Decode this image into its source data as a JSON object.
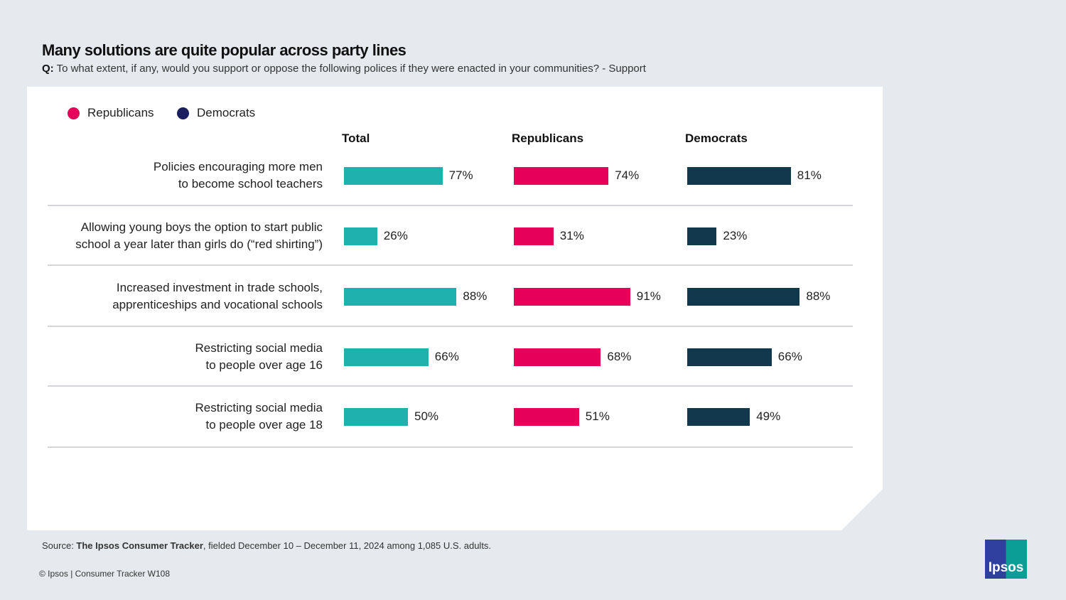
{
  "title": "Many solutions are quite popular across party lines",
  "subtitle": {
    "q": "Q:",
    "text": "To what extent, if any, would you support or oppose the following polices if they were enacted in your communities? - Support"
  },
  "source": {
    "prefix": "Source: ",
    "name": "The Ipsos Consumer Tracker",
    "text": ", fielded December 10 – December 11, 2024 among 1,085 U.S. adults."
  },
  "copyright": "© Ipsos | Consumer Tracker W108",
  "logo": "Ipsos",
  "chart_data": {
    "type": "bar",
    "title": "Many solutions are quite popular across party lines",
    "legend": [
      {
        "name": "Republicans",
        "color": "#e6005a"
      },
      {
        "name": "Democrats",
        "color": "#1b1f5e"
      }
    ],
    "xlim": [
      0,
      100
    ],
    "categories": [
      [
        "Policies encouraging more men",
        "to become school teachers"
      ],
      [
        "Allowing young boys the option to start public",
        "school a year later than girls do (“red shirting”)"
      ],
      [
        "Increased investment in trade schools,",
        "apprenticeships and vocational schools"
      ],
      [
        "Restricting social media",
        "to people over age 16"
      ],
      [
        "Restricting social media",
        "to people over age 18"
      ]
    ],
    "series": [
      {
        "name": "Total",
        "color": "#1eb1ae",
        "values": [
          77,
          26,
          88,
          66,
          50
        ]
      },
      {
        "name": "Republicans",
        "color": "#e6005a",
        "values": [
          74,
          31,
          91,
          68,
          51
        ]
      },
      {
        "name": "Democrats",
        "color": "#12384d",
        "values": [
          81,
          23,
          88,
          66,
          49
        ]
      }
    ]
  }
}
